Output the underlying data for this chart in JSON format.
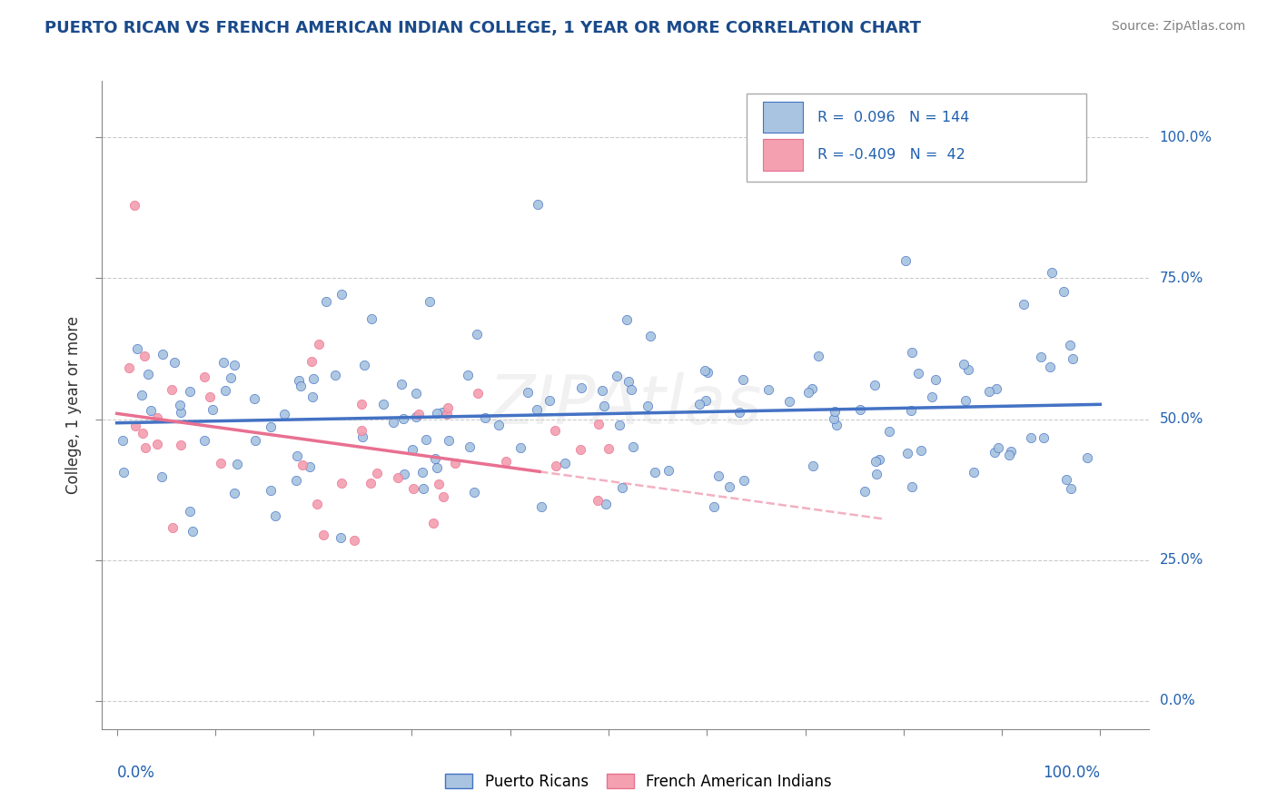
{
  "title": "PUERTO RICAN VS FRENCH AMERICAN INDIAN COLLEGE, 1 YEAR OR MORE CORRELATION CHART",
  "source_text": "Source: ZipAtlas.com",
  "ylabel": "College, 1 year or more",
  "ytick_labels": [
    "0.0%",
    "25.0%",
    "50.0%",
    "75.0%",
    "100.0%"
  ],
  "ytick_values": [
    0.0,
    0.25,
    0.5,
    0.75,
    1.0
  ],
  "legend_label1": "Puerto Ricans",
  "legend_label2": "French American Indians",
  "R1": 0.096,
  "N1": 144,
  "R2": -0.409,
  "N2": 42,
  "color1": "#a8c4e0",
  "color2": "#f4a0b0",
  "line1_color": "#4472c4",
  "line2_color": "#e87090",
  "title_color": "#1a4a8a",
  "source_color": "#808080",
  "bg_color": "#ffffff",
  "grid_color": "#cccccc",
  "axis_color": "#888888"
}
